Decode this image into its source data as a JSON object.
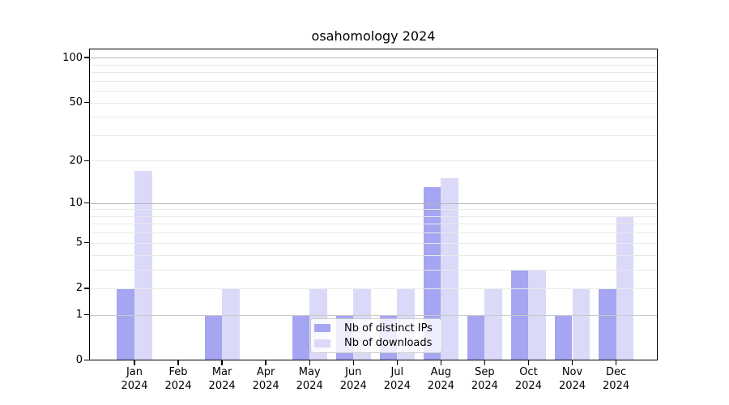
{
  "figure": {
    "title": "osahomology 2024"
  },
  "chart_data": {
    "type": "bar",
    "title": "osahomology 2024",
    "categories": [
      "Jan 2024",
      "Feb 2024",
      "Mar 2024",
      "Apr 2024",
      "May 2024",
      "Jun 2024",
      "Jul 2024",
      "Aug 2024",
      "Sep 2024",
      "Oct 2024",
      "Nov 2024",
      "Dec 2024"
    ],
    "series": [
      {
        "name": "Nb of distinct IPs",
        "color": "#a5a5f2",
        "values": [
          2,
          0,
          1,
          0,
          1,
          1,
          1,
          13,
          1,
          3,
          1,
          2
        ]
      },
      {
        "name": "Nb of downloads",
        "color": "#dadaf8",
        "values": [
          17,
          0,
          2,
          0,
          2,
          2,
          2,
          15,
          2,
          3,
          2,
          8
        ]
      }
    ],
    "xlabel": "",
    "ylabel": "",
    "yscale": "log10(value+1)",
    "yticks": [
      100,
      50,
      20,
      10,
      5,
      2,
      1,
      0
    ],
    "ylim": [
      0,
      115
    ],
    "grid": true,
    "legend_position": "lower center"
  }
}
